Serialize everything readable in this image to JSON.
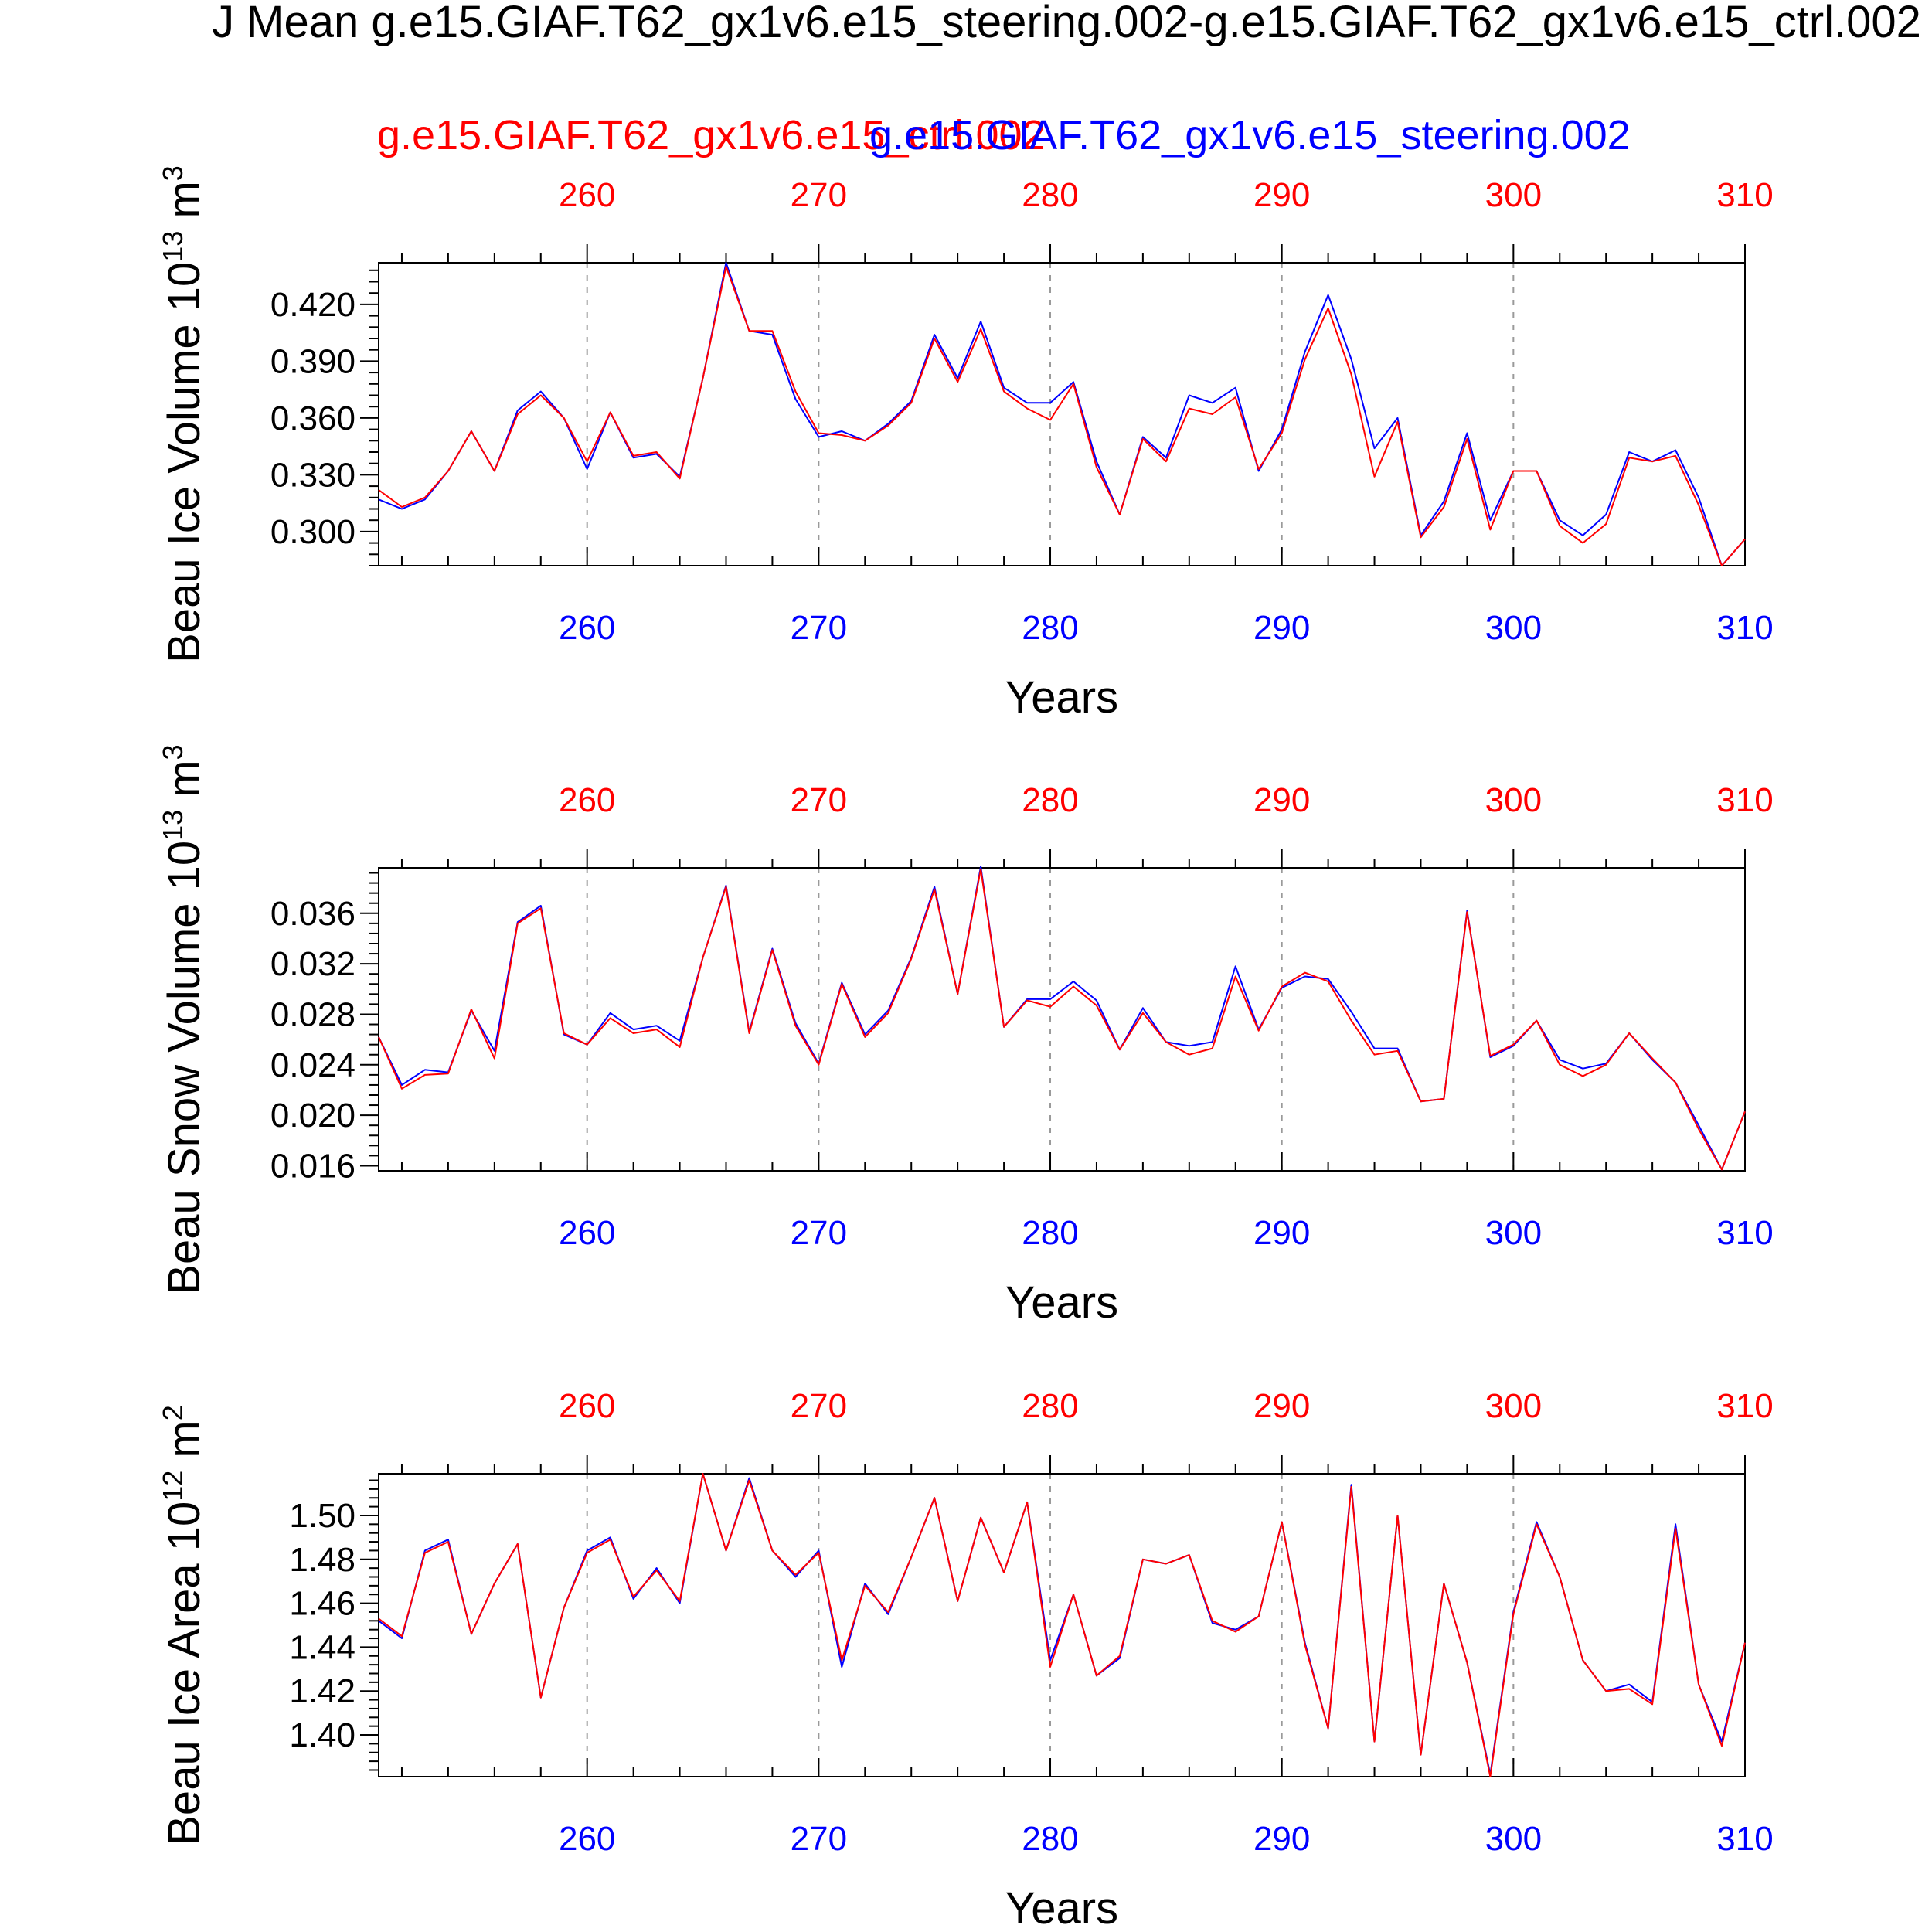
{
  "header": {
    "title": "J Mean g.e15.GIAF.T62_gx1v6.e15_steering.002-g.e15.GIAF.T62_gx1v6.e15_ctrl.002",
    "legend_ctrl": "g.e15.GIAF.T62_gx1v6.e15_ctrl.002",
    "legend_steer": "g.e15.GIAF.T62_gx1v6.e15_steering.002"
  },
  "colors": {
    "ctrl": "#ff0000",
    "steer": "#0000ff",
    "axis": "#000000",
    "grid": "#9a9a9a"
  },
  "chart_data": [
    {
      "type": "line",
      "ylabel": "Beau Ice Volume 10",
      "ylabel_sup": "13",
      "ylabel_unit": "m",
      "ylabel_unit_sup": "3",
      "xlabel": "Years",
      "xlim": [
        251,
        310
      ],
      "ylim": [
        0.282,
        0.442
      ],
      "xticks": [
        260,
        270,
        280,
        290,
        300,
        310
      ],
      "yticks": [
        0.3,
        0.33,
        0.36,
        0.39,
        0.42
      ],
      "ytick_labels": [
        "0.300",
        "0.330",
        "0.360",
        "0.390",
        "0.420"
      ],
      "x": [
        251,
        252,
        253,
        254,
        255,
        256,
        257,
        258,
        259,
        260,
        261,
        262,
        263,
        264,
        265,
        266,
        267,
        268,
        269,
        270,
        271,
        272,
        273,
        274,
        275,
        276,
        277,
        278,
        279,
        280,
        281,
        282,
        283,
        284,
        285,
        286,
        287,
        288,
        289,
        290,
        291,
        292,
        293,
        294,
        295,
        296,
        297,
        298,
        299,
        300,
        301,
        302,
        303,
        304,
        305,
        306,
        307,
        308,
        309,
        310
      ],
      "series": [
        {
          "name": "g.e15.GIAF.T62_gx1v6.e15_ctrl.002",
          "values": [
            0.322,
            0.313,
            0.318,
            0.332,
            0.353,
            0.332,
            0.362,
            0.372,
            0.36,
            0.337,
            0.363,
            0.34,
            0.342,
            0.328,
            0.381,
            0.44,
            0.406,
            0.406,
            0.374,
            0.352,
            0.351,
            0.348,
            0.356,
            0.368,
            0.402,
            0.379,
            0.407,
            0.374,
            0.365,
            0.359,
            0.378,
            0.334,
            0.309,
            0.349,
            0.337,
            0.365,
            0.362,
            0.371,
            0.333,
            0.352,
            0.391,
            0.418,
            0.383,
            0.329,
            0.358,
            0.297,
            0.313,
            0.349,
            0.301,
            0.332,
            0.332,
            0.303,
            0.294,
            0.304,
            0.339,
            0.337,
            0.34,
            0.314,
            0.282,
            0.296
          ]
        },
        {
          "name": "g.e15.GIAF.T62_gx1v6.e15_steering.002",
          "values": [
            0.317,
            0.312,
            0.317,
            0.332,
            0.353,
            0.332,
            0.364,
            0.374,
            0.36,
            0.333,
            0.363,
            0.339,
            0.341,
            0.329,
            0.381,
            0.442,
            0.406,
            0.404,
            0.37,
            0.35,
            0.353,
            0.348,
            0.357,
            0.369,
            0.404,
            0.381,
            0.411,
            0.376,
            0.368,
            0.368,
            0.379,
            0.337,
            0.309,
            0.35,
            0.339,
            0.372,
            0.368,
            0.376,
            0.332,
            0.354,
            0.395,
            0.425,
            0.391,
            0.344,
            0.36,
            0.298,
            0.316,
            0.352,
            0.306,
            0.332,
            0.332,
            0.306,
            0.298,
            0.309,
            0.342,
            0.337,
            0.343,
            0.318,
            0.282,
            0.296
          ]
        }
      ]
    },
    {
      "type": "line",
      "ylabel": "Beau Snow Volume 10",
      "ylabel_sup": "13",
      "ylabel_unit": "m",
      "ylabel_unit_sup": "3",
      "xlabel": "Years",
      "xlim": [
        251,
        310
      ],
      "ylim": [
        0.0156,
        0.0396
      ],
      "xticks": [
        260,
        270,
        280,
        290,
        300,
        310
      ],
      "yticks": [
        0.016,
        0.02,
        0.024,
        0.028,
        0.032,
        0.036
      ],
      "ytick_labels": [
        "0.016",
        "0.020",
        "0.024",
        "0.028",
        "0.032",
        "0.036"
      ],
      "x": [
        251,
        252,
        253,
        254,
        255,
        256,
        257,
        258,
        259,
        260,
        261,
        262,
        263,
        264,
        265,
        266,
        267,
        268,
        269,
        270,
        271,
        272,
        273,
        274,
        275,
        276,
        277,
        278,
        279,
        280,
        281,
        282,
        283,
        284,
        285,
        286,
        287,
        288,
        289,
        290,
        291,
        292,
        293,
        294,
        295,
        296,
        297,
        298,
        299,
        300,
        301,
        302,
        303,
        304,
        305,
        306,
        307,
        308,
        309,
        310
      ],
      "series": [
        {
          "name": "g.e15.GIAF.T62_gx1v6.e15_ctrl.002",
          "values": [
            0.0262,
            0.0221,
            0.0232,
            0.0233,
            0.0284,
            0.0245,
            0.0352,
            0.0364,
            0.0265,
            0.0256,
            0.0277,
            0.0265,
            0.0268,
            0.0254,
            0.0325,
            0.0381,
            0.0265,
            0.0331,
            0.0271,
            0.024,
            0.0304,
            0.0262,
            0.0281,
            0.0324,
            0.0379,
            0.0296,
            0.0395,
            0.027,
            0.0291,
            0.0286,
            0.0302,
            0.0287,
            0.0252,
            0.0281,
            0.0258,
            0.0248,
            0.0253,
            0.031,
            0.0267,
            0.0302,
            0.0313,
            0.0306,
            0.0275,
            0.0248,
            0.0251,
            0.0211,
            0.0213,
            0.0361,
            0.0247,
            0.0256,
            0.0275,
            0.024,
            0.0231,
            0.024,
            0.0265,
            0.0245,
            0.0226,
            0.0189,
            0.0157,
            0.0203
          ]
        },
        {
          "name": "g.e15.GIAF.T62_gx1v6.e15_steering.002",
          "values": [
            0.0262,
            0.0224,
            0.0236,
            0.0234,
            0.0283,
            0.0251,
            0.0353,
            0.0366,
            0.0264,
            0.0256,
            0.0281,
            0.0268,
            0.0271,
            0.0259,
            0.0325,
            0.0382,
            0.0266,
            0.0332,
            0.0273,
            0.0241,
            0.0305,
            0.0264,
            0.0283,
            0.0325,
            0.0381,
            0.0296,
            0.0397,
            0.027,
            0.0292,
            0.0292,
            0.0306,
            0.0291,
            0.0252,
            0.0285,
            0.0258,
            0.0255,
            0.0258,
            0.0318,
            0.0268,
            0.0301,
            0.031,
            0.0308,
            0.0282,
            0.0253,
            0.0253,
            0.0211,
            0.0213,
            0.0362,
            0.0246,
            0.0255,
            0.0275,
            0.0244,
            0.0237,
            0.0241,
            0.0265,
            0.0244,
            0.0226,
            0.0192,
            0.0157,
            0.0203
          ]
        }
      ]
    },
    {
      "type": "line",
      "ylabel": "Beau Ice Area 10",
      "ylabel_sup": "12",
      "ylabel_unit": "m",
      "ylabel_unit_sup": "2",
      "xlabel": "Years",
      "xlim": [
        251,
        310
      ],
      "ylim": [
        1.381,
        1.519
      ],
      "xticks": [
        260,
        270,
        280,
        290,
        300,
        310
      ],
      "yticks": [
        1.4,
        1.42,
        1.44,
        1.46,
        1.48,
        1.5
      ],
      "ytick_labels": [
        "1.40",
        "1.42",
        "1.44",
        "1.46",
        "1.48",
        "1.50"
      ],
      "x": [
        251,
        252,
        253,
        254,
        255,
        256,
        257,
        258,
        259,
        260,
        261,
        262,
        263,
        264,
        265,
        266,
        267,
        268,
        269,
        270,
        271,
        272,
        273,
        274,
        275,
        276,
        277,
        278,
        279,
        280,
        281,
        282,
        283,
        284,
        285,
        286,
        287,
        288,
        289,
        290,
        291,
        292,
        293,
        294,
        295,
        296,
        297,
        298,
        299,
        300,
        301,
        302,
        303,
        304,
        305,
        306,
        307,
        308,
        309,
        310
      ],
      "series": [
        {
          "name": "g.e15.GIAF.T62_gx1v6.e15_ctrl.002",
          "values": [
            1.453,
            1.445,
            1.483,
            1.488,
            1.446,
            1.469,
            1.487,
            1.417,
            1.458,
            1.483,
            1.489,
            1.463,
            1.475,
            1.461,
            1.519,
            1.484,
            1.516,
            1.484,
            1.473,
            1.483,
            1.434,
            1.468,
            1.456,
            1.481,
            1.508,
            1.461,
            1.499,
            1.474,
            1.506,
            1.431,
            1.464,
            1.427,
            1.436,
            1.48,
            1.478,
            1.482,
            1.452,
            1.447,
            1.454,
            1.497,
            1.441,
            1.403,
            1.513,
            1.397,
            1.5,
            1.391,
            1.469,
            1.433,
            1.381,
            1.455,
            1.496,
            1.472,
            1.434,
            1.42,
            1.421,
            1.414,
            1.494,
            1.423,
            1.395,
            1.442
          ]
        },
        {
          "name": "g.e15.GIAF.T62_gx1v6.e15_steering.002",
          "values": [
            1.452,
            1.444,
            1.484,
            1.489,
            1.446,
            1.469,
            1.487,
            1.417,
            1.458,
            1.484,
            1.49,
            1.462,
            1.476,
            1.46,
            1.519,
            1.484,
            1.517,
            1.484,
            1.472,
            1.484,
            1.431,
            1.469,
            1.455,
            1.481,
            1.508,
            1.461,
            1.499,
            1.474,
            1.506,
            1.434,
            1.464,
            1.427,
            1.435,
            1.48,
            1.478,
            1.482,
            1.451,
            1.448,
            1.454,
            1.497,
            1.442,
            1.403,
            1.514,
            1.397,
            1.5,
            1.391,
            1.469,
            1.433,
            1.382,
            1.456,
            1.497,
            1.472,
            1.434,
            1.42,
            1.423,
            1.415,
            1.496,
            1.423,
            1.397,
            1.442
          ]
        }
      ]
    }
  ]
}
